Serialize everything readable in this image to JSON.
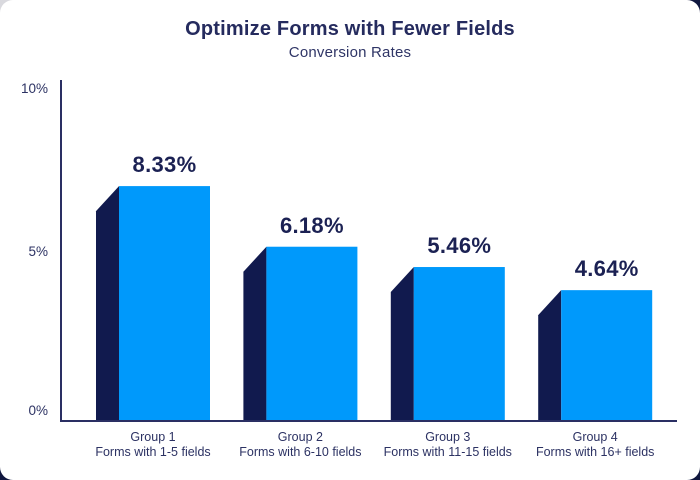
{
  "chart_data": {
    "type": "bar",
    "title": "Optimize Forms with Fewer Fields",
    "subtitle": "Conversion Rates",
    "xlabel": "",
    "ylabel": "",
    "ylim": [
      0,
      10
    ],
    "y_ticks": [
      "10%",
      "5%",
      "0%"
    ],
    "grid": false,
    "legend": false,
    "style": "3d-extruded-bars",
    "bars": [
      {
        "group": "Group 1",
        "description": "Forms with 1-5 fields",
        "value": 8.33,
        "label": "8.33%"
      },
      {
        "group": "Group 2",
        "description": "Forms with 6-10 fields",
        "value": 6.18,
        "label": "6.18%"
      },
      {
        "group": "Group 3",
        "description": "Forms with 11-15 fields",
        "value": 5.46,
        "label": "5.46%"
      },
      {
        "group": "Group 4",
        "description": "Forms with 16+ fields",
        "value": 4.64,
        "label": "4.64%"
      }
    ],
    "colors": {
      "bar_front": "#0099FB",
      "bar_side": "#111A4E",
      "axis": "#2A2F63",
      "text": "#2C3263",
      "value_text": "#1B2153",
      "background": "#FFFFFF"
    }
  }
}
